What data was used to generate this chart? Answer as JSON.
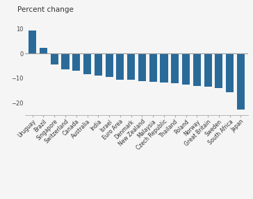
{
  "categories": [
    "Uruguay",
    "Brazil",
    "Singapore",
    "Switzerland",
    "Canada",
    "Australia",
    "India",
    "Israel",
    "Euro Area",
    "Denmark",
    "New Zealand",
    "Malaysia",
    "Czech Republic",
    "Thailand",
    "Poland",
    "Norway",
    "Great Britain",
    "Sweden",
    "South Africa",
    "Japan"
  ],
  "values": [
    9.2,
    2.2,
    -4.5,
    -6.5,
    -6.8,
    -8.2,
    -9.0,
    -9.5,
    -10.5,
    -10.7,
    -11.2,
    -11.5,
    -11.8,
    -12.0,
    -12.5,
    -13.0,
    -13.5,
    -14.0,
    -15.5,
    -22.5
  ],
  "bar_color": "#2a6a99",
  "title": "Percent change",
  "ylim": [
    -25,
    12
  ],
  "yticks": [
    -20,
    -10,
    0,
    10
  ],
  "background_color": "#f5f5f5",
  "spine_color": "#aaaaaa",
  "zero_line_color": "#999999",
  "label_fontsize": 5.5,
  "title_fontsize": 7.5
}
